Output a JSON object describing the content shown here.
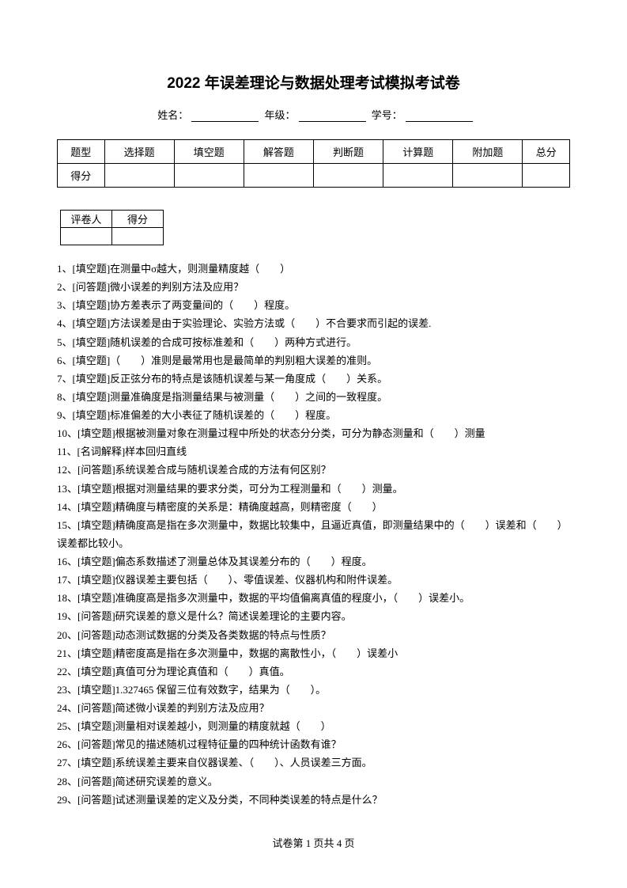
{
  "title": "2022 年误差理论与数据处理考试模拟考试卷",
  "info": {
    "name_label": "姓名：",
    "grade_label": "年级：",
    "id_label": "学号："
  },
  "score_table": {
    "headers": [
      "题型",
      "选择题",
      "填空题",
      "解答题",
      "判断题",
      "计算题",
      "附加题",
      "总分"
    ],
    "row2_label": "得分"
  },
  "grader_table": {
    "col1": "评卷人",
    "col2": "得分"
  },
  "questions": [
    "1、[填空题]在测量中σ越大，则测量精度越（　　）",
    "2、[问答题]微小误差的判别方法及应用？",
    "3、[填空题]协方差表示了两变量间的（　　）程度。",
    "4、[填空题]方法误差是由于实验理论、实验方法或（　　）不合要求而引起的误差.",
    "5、[填空题]随机误差的合成可按标准差和（　　）两种方式进行。",
    "6、[填空题]（　　）准则是最常用也是最简单的判别粗大误差的准则。",
    "7、[填空题]反正弦分布的特点是该随机误差与某一角度成（　　）关系。",
    "8、[填空题]测量准确度是指测量结果与被测量（　　）之间的一致程度。",
    "9、[填空题]标准偏差的大小表征了随机误差的（　　）程度。",
    "10、[填空题]根据被测量对象在测量过程中所处的状态分分类，可分为静态测量和（　　）测量",
    "11、[名词解释]样本回归直线",
    "12、[问答题]系统误差合成与随机误差合成的方法有何区别？",
    "13、[填空题]根据对测量结果的要求分类，可分为工程测量和（　　）测量。",
    "14、[填空题]精确度与精密度的关系是：精确度越高，则精密度（　　）",
    "15、[填空题]精确度高是指在多次测量中，数据比较集中，且逼近真值，即测量结果中的（　　）误差和（　　）误差都比较小。",
    "16、[填空题]偏态系数描述了测量总体及其误差分布的（　　）程度。",
    "17、[填空题]仪器误差主要包括（　　）、零值误差、仪器机构和附件误差。",
    "18、[填空题]准确度高是指多次测量中，数据的平均值偏离真值的程度小，（　　）误差小。",
    "19、[问答题]研究误差的意义是什么？简述误差理论的主要内容。",
    "20、[问答题]动态测试数据的分类及各类数据的特点与性质？",
    "21、[填空题]精密度高是指在多次测量中，数据的离散性小，（　　）误差小",
    "22、[填空题]真值可分为理论真值和（　　）真值。",
    "23、[填空题]1.327465 保留三位有效数字，结果为（　　）。",
    "24、[问答题]简述微小误差的判别方法及应用？",
    "25、[填空题]测量相对误差越小，则测量的精度就越（　　）",
    "26、[问答题]常见的描述随机过程特征量的四种统计函数有谁？",
    "27、[填空题]系统误差主要来自仪器误差、（　　）、人员误差三方面。",
    "28、[问答题]简述研究误差的意义。",
    "29、[问答题]试述测量误差的定义及分类，不同种类误差的特点是什么？"
  ],
  "footer": {
    "text": "试卷第 1 页共 4 页"
  }
}
